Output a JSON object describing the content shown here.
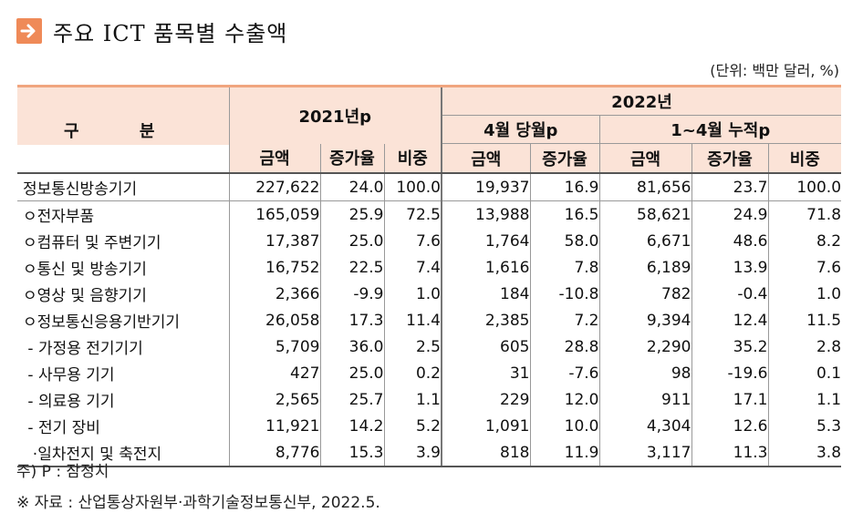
{
  "title": "주요 ICT 품목별 수출액",
  "unit": "(단위: 백만 달러, %)",
  "header": {
    "category": "구 분",
    "y2021": "2021년p",
    "y2022": "2022년",
    "april": "4월 당월p",
    "cumulative": "1~4월 누적p",
    "amount": "금액",
    "growth": "증가율",
    "share": "비중"
  },
  "rows": [
    {
      "label": "정보통신방송기기",
      "v": [
        "227,622",
        "24.0",
        "100.0",
        "19,937",
        "16.9",
        "81,656",
        "23.7",
        "100.0"
      ]
    },
    {
      "label": "ㅇ전자부품",
      "v": [
        "165,059",
        "25.9",
        "72.5",
        "13,988",
        "16.5",
        "58,621",
        "24.9",
        "71.8"
      ]
    },
    {
      "label": "ㅇ컴퓨터 및 주변기기",
      "v": [
        "17,387",
        "25.0",
        "7.6",
        "1,764",
        "58.0",
        "6,671",
        "48.6",
        "8.2"
      ]
    },
    {
      "label": "ㅇ통신 및 방송기기",
      "v": [
        "16,752",
        "22.5",
        "7.4",
        "1,616",
        "7.8",
        "6,189",
        "13.9",
        "7.6"
      ]
    },
    {
      "label": "ㅇ영상 및 음향기기",
      "v": [
        "2,366",
        "-9.9",
        "1.0",
        "184",
        "-10.8",
        "782",
        "-0.4",
        "1.0"
      ]
    },
    {
      "label": "ㅇ정보통신응용기반기기",
      "v": [
        "26,058",
        "17.3",
        "11.4",
        "2,385",
        "7.2",
        "9,394",
        "12.4",
        "11.5"
      ]
    },
    {
      "label": " - 가정용 전기기기",
      "v": [
        "5,709",
        "36.0",
        "2.5",
        "605",
        "28.8",
        "2,290",
        "35.2",
        "2.8"
      ]
    },
    {
      "label": " - 사무용 기기",
      "v": [
        "427",
        "25.0",
        "0.2",
        "31",
        "-7.6",
        "98",
        "-19.6",
        "0.1"
      ]
    },
    {
      "label": " - 의료용 기기",
      "v": [
        "2,565",
        "25.7",
        "1.1",
        "229",
        "12.0",
        "911",
        "17.1",
        "1.1"
      ]
    },
    {
      "label": " - 전기 장비",
      "v": [
        "11,921",
        "14.2",
        "5.2",
        "1,091",
        "10.0",
        "4,304",
        "12.6",
        "5.3"
      ]
    },
    {
      "label": "  ·일차전지 및 축전지",
      "v": [
        "8,776",
        "15.3",
        "3.9",
        "818",
        "11.9",
        "3,117",
        "11.3",
        "3.8"
      ]
    }
  ],
  "notes": {
    "note1": "주) P : 잠정치",
    "note2": "※ 자료 : 산업통상자원부·과학기술정보통신부, 2022.5."
  },
  "colors": {
    "accent": "#ef8a58",
    "header_bg": "#fbe3d7",
    "rule": "#f0a57f"
  },
  "icons": {
    "title_icon": "arrow-right-icon"
  }
}
